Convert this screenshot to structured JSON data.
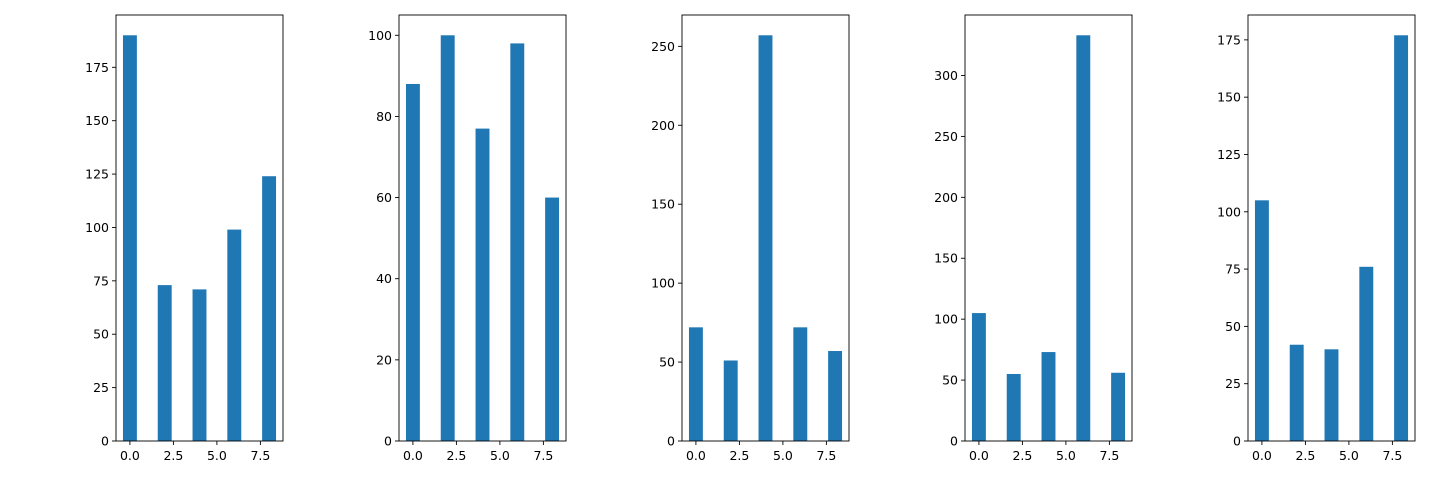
{
  "bar_color": "#1f77b4",
  "chart_data": [
    {
      "type": "bar",
      "x": [
        0,
        2,
        4,
        6,
        8
      ],
      "values": [
        190,
        73,
        71,
        99,
        124
      ],
      "xlim": [
        -0.8,
        8.8
      ],
      "ylim": [
        0,
        199.5
      ],
      "xticks": [
        0.0,
        2.5,
        5.0,
        7.5
      ],
      "xtick_labels": [
        "0.0",
        "2.5",
        "5.0",
        "7.5"
      ],
      "yticks": [
        0,
        25,
        50,
        75,
        100,
        125,
        150,
        175
      ],
      "ytick_labels": [
        "0",
        "25",
        "50",
        "75",
        "100",
        "125",
        "150",
        "175"
      ]
    },
    {
      "type": "bar",
      "x": [
        0,
        2,
        4,
        6,
        8
      ],
      "values": [
        88,
        100,
        77,
        98,
        60
      ],
      "xlim": [
        -0.8,
        8.8
      ],
      "ylim": [
        0,
        105
      ],
      "xticks": [
        0.0,
        2.5,
        5.0,
        7.5
      ],
      "xtick_labels": [
        "0.0",
        "2.5",
        "5.0",
        "7.5"
      ],
      "yticks": [
        0,
        20,
        40,
        60,
        80,
        100
      ],
      "ytick_labels": [
        "0",
        "20",
        "40",
        "60",
        "80",
        "100"
      ]
    },
    {
      "type": "bar",
      "x": [
        0,
        2,
        4,
        6,
        8
      ],
      "values": [
        72,
        51,
        257,
        72,
        57
      ],
      "xlim": [
        -0.8,
        8.8
      ],
      "ylim": [
        0,
        269.85
      ],
      "xticks": [
        0.0,
        2.5,
        5.0,
        7.5
      ],
      "xtick_labels": [
        "0.0",
        "2.5",
        "5.0",
        "7.5"
      ],
      "yticks": [
        0,
        50,
        100,
        150,
        200,
        250
      ],
      "ytick_labels": [
        "0",
        "50",
        "100",
        "150",
        "200",
        "250"
      ]
    },
    {
      "type": "bar",
      "x": [
        0,
        2,
        4,
        6,
        8
      ],
      "values": [
        105,
        55,
        73,
        333,
        56
      ],
      "xlim": [
        -0.8,
        8.8
      ],
      "ylim": [
        0,
        349.65
      ],
      "xticks": [
        0.0,
        2.5,
        5.0,
        7.5
      ],
      "xtick_labels": [
        "0.0",
        "2.5",
        "5.0",
        "7.5"
      ],
      "yticks": [
        0,
        50,
        100,
        150,
        200,
        250,
        300
      ],
      "ytick_labels": [
        "0",
        "50",
        "100",
        "150",
        "200",
        "250",
        "300"
      ]
    },
    {
      "type": "bar",
      "x": [
        0,
        2,
        4,
        6,
        8
      ],
      "values": [
        105,
        42,
        40,
        76,
        177
      ],
      "xlim": [
        -0.8,
        8.8
      ],
      "ylim": [
        0,
        185.85
      ],
      "xticks": [
        0.0,
        2.5,
        5.0,
        7.5
      ],
      "xtick_labels": [
        "0.0",
        "2.5",
        "5.0",
        "7.5"
      ],
      "yticks": [
        0,
        25,
        50,
        75,
        100,
        125,
        150,
        175
      ],
      "ytick_labels": [
        "0",
        "25",
        "50",
        "75",
        "100",
        "125",
        "150",
        "175"
      ]
    }
  ]
}
